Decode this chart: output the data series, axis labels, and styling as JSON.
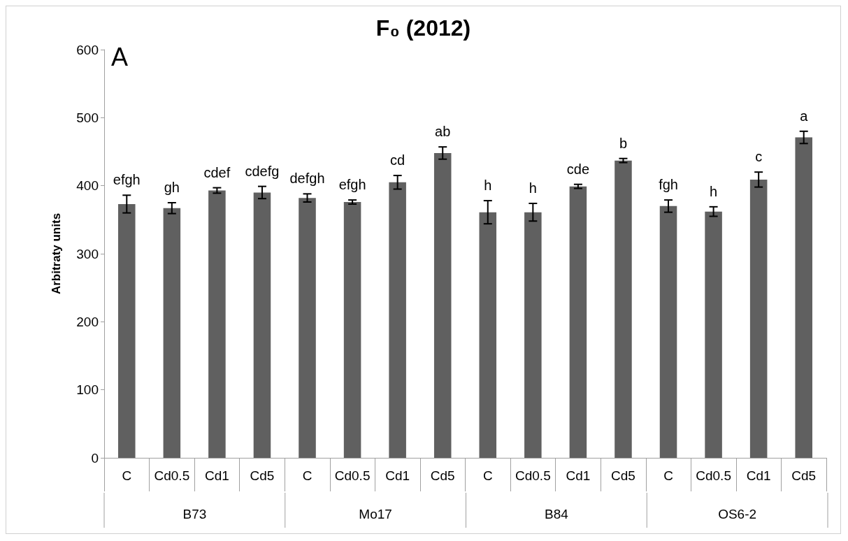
{
  "chart_data": {
    "type": "bar",
    "title": "F₀ (2012)",
    "ylabel": "Arbitraty units",
    "categories": [
      "C",
      "Cd0.5",
      "Cd1",
      "Cd5",
      "C",
      "Cd0.5",
      "Cd1",
      "Cd5",
      "C",
      "Cd0.5",
      "Cd1",
      "Cd5",
      "C",
      "Cd0.5",
      "Cd1",
      "Cd5"
    ],
    "values": [
      373,
      367,
      393,
      390,
      382,
      376,
      405,
      448,
      361,
      361,
      399,
      437,
      370,
      362,
      409,
      471
    ],
    "errors": [
      13,
      8,
      4,
      9,
      6,
      3,
      10,
      9,
      17,
      13,
      3,
      3,
      9,
      7,
      11,
      9
    ],
    "value_labels": [
      "efgh",
      "gh",
      "cdef",
      "cdefg",
      "defgh",
      "efgh",
      "cd",
      "ab",
      "h",
      "h",
      "cde",
      "b",
      "fgh",
      "h",
      "c",
      "a"
    ],
    "color": "#606060",
    "annotations": [
      "A",
      "B73",
      "Mo17",
      "B84",
      "OS6-2"
    ],
    "ylim": [
      0,
      600
    ],
    "yticks": [
      0,
      100,
      200,
      300,
      400,
      500,
      600
    ]
  }
}
